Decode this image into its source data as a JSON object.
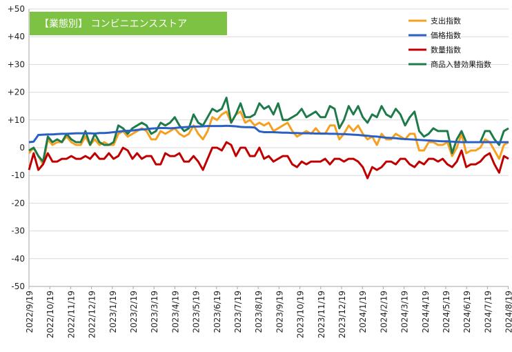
{
  "title_badge": {
    "text": "【業態別】 コンビニエンスストア",
    "bg_color": "#7dc243"
  },
  "chart_data": {
    "type": "line",
    "ylim": [
      -50,
      50
    ],
    "y_ticks": [
      "+50",
      "+40",
      "+30",
      "+20",
      "+10",
      "0",
      "-10",
      "-20",
      "-30",
      "-40",
      "-50"
    ],
    "y_tick_values": [
      50,
      40,
      30,
      20,
      10,
      0,
      -10,
      -20,
      -30,
      -40,
      -50
    ],
    "x_tick_labels": [
      "2022/9/19",
      "2022/10/19",
      "2022/11/19",
      "2022/12/19",
      "2023/1/19",
      "2023/2/19",
      "2023/3/19",
      "2023/4/19",
      "2023/5/19",
      "2023/6/19",
      "2023/7/19",
      "2023/8/19",
      "2023/9/19",
      "2023/10/19",
      "2023/11/19",
      "2023/12/19",
      "2024/1/19",
      "2024/2/19",
      "2024/3/19",
      "2024/4/19",
      "2024/5/19",
      "2024/6/19",
      "2024/7/19",
      "2024/8/19"
    ],
    "grid": "horizontal",
    "legend_position": "top-right",
    "series": [
      {
        "name": "支出指数",
        "color": "#f5a020",
        "values": [
          -2,
          0,
          -3,
          -6,
          3,
          1,
          2,
          2,
          4,
          2,
          1,
          1,
          4,
          1,
          3,
          1,
          2,
          1,
          1,
          5,
          6,
          4,
          5,
          6,
          7,
          6,
          3,
          3,
          6,
          5,
          6,
          7,
          5,
          4,
          5,
          8,
          5,
          3,
          6,
          11,
          10,
          12,
          13,
          9,
          12,
          13,
          9,
          10,
          8,
          9,
          8,
          9,
          6,
          7,
          8,
          9,
          6,
          4,
          5,
          6,
          5,
          7,
          5,
          5,
          8,
          8,
          3,
          5,
          8,
          6,
          8,
          5,
          3,
          4,
          1,
          5,
          3,
          3,
          5,
          4,
          3,
          5,
          5,
          -1,
          -1,
          2,
          2,
          1,
          1,
          2,
          -3,
          0,
          5,
          -2,
          -1,
          -1,
          0,
          3,
          2,
          -1,
          -4,
          1,
          2
        ]
      },
      {
        "name": "価格指数",
        "color": "#2a5fc4",
        "values": [
          2.0,
          2.2,
          4.6,
          4.7,
          4.8,
          4.8,
          4.9,
          5.0,
          5.0,
          5.1,
          5.2,
          5.2,
          5.2,
          5.2,
          5.1,
          5.3,
          5.3,
          5.4,
          5.6,
          5.8,
          6.0,
          6.1,
          6.2,
          6.4,
          6.6,
          6.7,
          6.9,
          7.0,
          7.1,
          7.1,
          7.0,
          7.1,
          7.3,
          7.4,
          7.5,
          7.6,
          7.6,
          7.7,
          7.8,
          7.8,
          7.8,
          7.8,
          7.9,
          7.8,
          7.7,
          7.5,
          7.4,
          7.4,
          7.3,
          5.9,
          5.6,
          5.6,
          5.6,
          5.5,
          5.4,
          5.4,
          5.3,
          5.3,
          5.2,
          5.2,
          5.2,
          5.1,
          5.1,
          5.1,
          5.0,
          5.0,
          4.9,
          4.9,
          4.8,
          4.7,
          4.6,
          4.4,
          4.3,
          4.1,
          4.0,
          3.8,
          3.6,
          3.5,
          3.4,
          3.2,
          3.1,
          3.0,
          2.9,
          2.8,
          2.7,
          2.6,
          2.5,
          2.4,
          2.3,
          2.3,
          2.2,
          2.1,
          2.0,
          2.0,
          2.0,
          2.0,
          2.0,
          2.0,
          2.0,
          2.0,
          2.0,
          2.0,
          2.0
        ]
      },
      {
        "name": "数量指数",
        "color": "#c00000",
        "values": [
          -8,
          -2,
          -8,
          -6,
          -2,
          -5,
          -5,
          -4,
          -4,
          -3,
          -4,
          -4,
          -3,
          -4,
          -2,
          -4,
          -4,
          -2,
          -4,
          -3,
          0,
          -1,
          -4,
          -2,
          -4,
          -3,
          -3,
          -6,
          -6,
          -2,
          -3,
          -3,
          -2,
          -5,
          -5,
          -3,
          -5,
          -8,
          -4,
          0,
          0,
          -1,
          2,
          1,
          -3,
          0,
          0,
          -3,
          -3,
          0,
          -4,
          -3,
          -5,
          -4,
          -3,
          -3,
          -6,
          -7,
          -5,
          -6,
          -5,
          -5,
          -5,
          -4,
          -6,
          -4,
          -4,
          -5,
          -4,
          -4,
          -5,
          -7,
          -11,
          -7,
          -8,
          -7,
          -5,
          -5,
          -6,
          -4,
          -4,
          -6,
          -7,
          -5,
          -6,
          -4,
          -4,
          -5,
          -4,
          -6,
          -7,
          -5,
          -1,
          -7,
          -6,
          -6,
          -5,
          -3,
          -2,
          -6,
          -9,
          -3,
          -4
        ]
      },
      {
        "name": "商品入替効果指数",
        "color": "#1e7a4a",
        "values": [
          -1,
          0,
          -3,
          -5,
          4,
          2,
          3,
          2,
          5,
          3,
          2,
          2,
          6,
          1,
          5,
          2,
          1,
          1,
          2,
          8,
          7,
          5,
          7,
          8,
          9,
          8,
          5,
          6,
          9,
          8,
          9,
          11,
          8,
          6,
          7,
          12,
          9,
          8,
          11,
          14,
          13,
          14,
          18,
          9,
          12,
          16,
          11,
          11,
          12,
          16,
          14,
          15,
          12,
          16,
          10,
          10,
          11,
          12,
          14,
          11,
          12,
          13,
          11,
          11,
          15,
          14,
          7,
          10,
          15,
          12,
          15,
          11,
          9,
          12,
          11,
          15,
          12,
          11,
          14,
          12,
          8,
          11,
          13,
          6,
          4,
          5,
          7,
          6,
          6,
          6,
          -2,
          3,
          6,
          2,
          2,
          2,
          2,
          6,
          6,
          3,
          1,
          6,
          7
        ]
      }
    ]
  }
}
